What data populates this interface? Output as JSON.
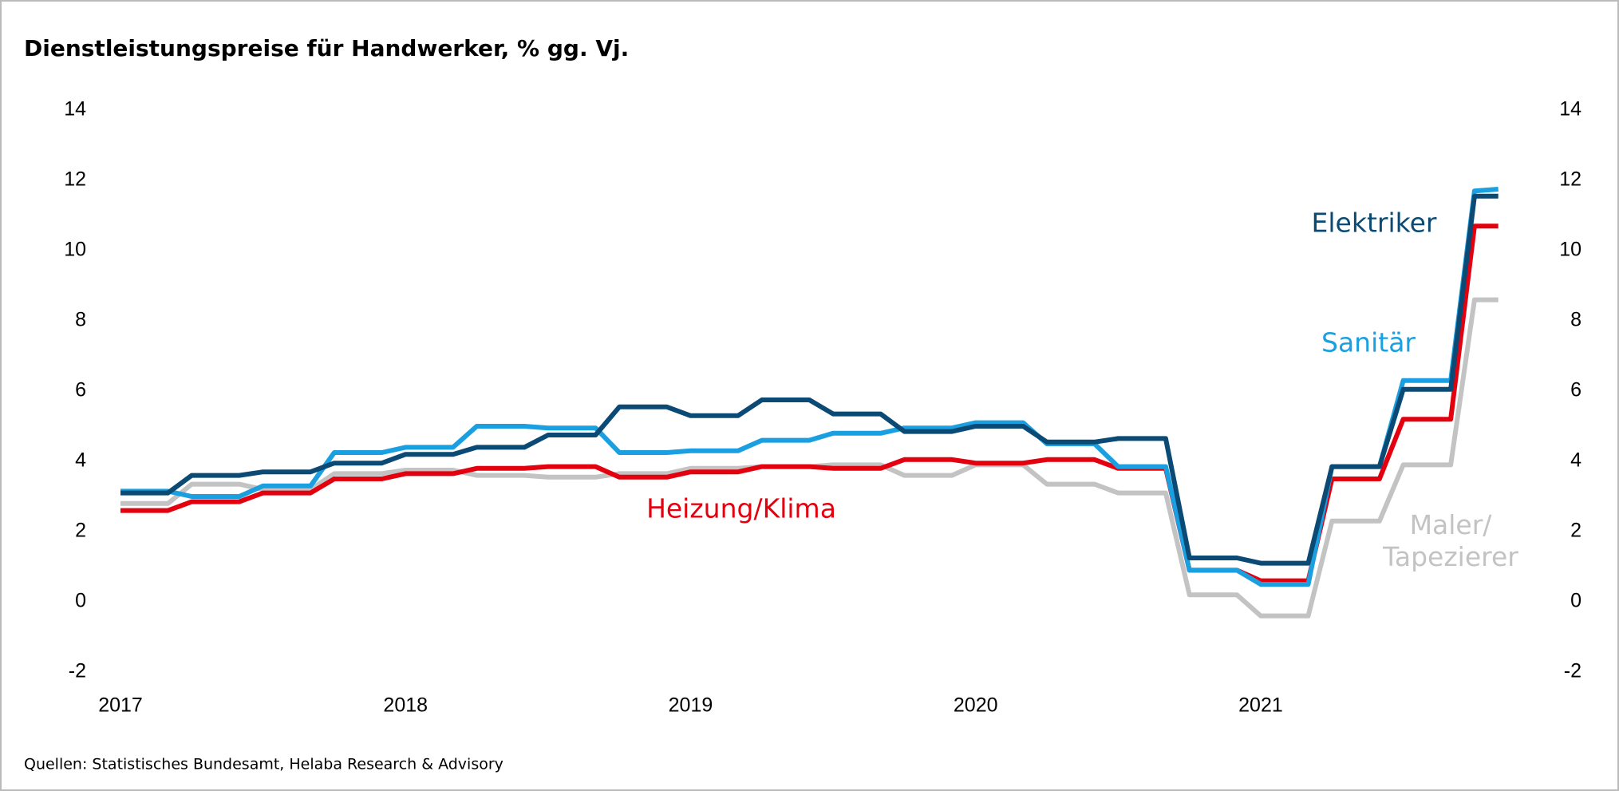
{
  "chart_data": {
    "type": "line",
    "title": "Dienstleistungspreise für Handwerker, % gg. Vj.",
    "source": "Quellen: Statistisches Bundesamt, Helaba Research & Advisory",
    "categories": [
      "2017",
      null,
      null,
      null,
      null,
      null,
      null,
      null,
      null,
      null,
      null,
      null,
      "2018",
      null,
      null,
      null,
      null,
      null,
      null,
      null,
      null,
      null,
      null,
      null,
      "2019",
      null,
      null,
      null,
      null,
      null,
      null,
      null,
      null,
      null,
      null,
      null,
      "2020",
      null,
      null,
      null,
      null,
      null,
      null,
      null,
      null,
      null,
      null,
      null,
      "2021",
      null,
      null,
      null,
      null,
      null,
      null,
      null,
      null,
      null,
      null
    ],
    "ylim": [
      -2,
      14
    ],
    "yticks": [
      -2,
      0,
      2,
      4,
      6,
      8,
      10,
      12,
      14
    ],
    "y2lim": [
      -2,
      14
    ],
    "y2ticks": [
      -2,
      0,
      2,
      4,
      6,
      8,
      10,
      12,
      14
    ],
    "grid": false,
    "series": [
      {
        "name": "Maler/ Tapezierer",
        "color": "#c3c3c3",
        "values": [
          2.8,
          2.8,
          2.8,
          3.35,
          3.35,
          3.35,
          3.2,
          3.2,
          3.2,
          3.65,
          3.65,
          3.65,
          3.75,
          3.75,
          3.75,
          3.6,
          3.6,
          3.6,
          3.55,
          3.55,
          3.55,
          3.65,
          3.65,
          3.65,
          3.8,
          3.8,
          3.8,
          3.85,
          3.85,
          3.85,
          3.9,
          3.9,
          3.9,
          3.6,
          3.6,
          3.6,
          3.9,
          3.9,
          3.9,
          3.35,
          3.35,
          3.35,
          3.1,
          3.1,
          3.1,
          0.2,
          0.2,
          0.2,
          -0.4,
          -0.4,
          -0.4,
          2.3,
          2.3,
          2.3,
          3.9,
          3.9,
          3.9,
          8.6,
          8.6
        ]
      },
      {
        "name": "Heizung/Klima",
        "color": "#e3000f",
        "values": [
          2.6,
          2.6,
          2.6,
          2.85,
          2.85,
          2.85,
          3.1,
          3.1,
          3.1,
          3.5,
          3.5,
          3.5,
          3.65,
          3.65,
          3.65,
          3.8,
          3.8,
          3.8,
          3.85,
          3.85,
          3.85,
          3.55,
          3.55,
          3.55,
          3.7,
          3.7,
          3.7,
          3.85,
          3.85,
          3.85,
          3.8,
          3.8,
          3.8,
          4.05,
          4.05,
          4.05,
          3.95,
          3.95,
          3.95,
          4.05,
          4.05,
          4.05,
          3.8,
          3.8,
          3.8,
          0.9,
          0.9,
          0.9,
          0.6,
          0.6,
          0.6,
          3.5,
          3.5,
          3.5,
          5.2,
          5.2,
          5.2,
          10.7,
          10.7
        ]
      },
      {
        "name": "Sanitär",
        "color": "#1aa0e0",
        "values": [
          3.15,
          3.15,
          3.15,
          3.0,
          3.0,
          3.0,
          3.3,
          3.3,
          3.3,
          4.25,
          4.25,
          4.25,
          4.4,
          4.4,
          4.4,
          5.0,
          5.0,
          5.0,
          4.95,
          4.95,
          4.95,
          4.25,
          4.25,
          4.25,
          4.3,
          4.3,
          4.3,
          4.6,
          4.6,
          4.6,
          4.8,
          4.8,
          4.8,
          4.95,
          4.95,
          4.95,
          5.1,
          5.1,
          5.1,
          4.5,
          4.5,
          4.5,
          3.85,
          3.85,
          3.85,
          0.9,
          0.9,
          0.9,
          0.5,
          0.5,
          0.5,
          3.85,
          3.85,
          3.85,
          6.3,
          6.3,
          6.3,
          11.7,
          11.75
        ]
      },
      {
        "name": "Elektriker",
        "color": "#0a4a74",
        "values": [
          3.1,
          3.1,
          3.1,
          3.6,
          3.6,
          3.6,
          3.7,
          3.7,
          3.7,
          3.95,
          3.95,
          3.95,
          4.2,
          4.2,
          4.2,
          4.4,
          4.4,
          4.4,
          4.75,
          4.75,
          4.75,
          5.55,
          5.55,
          5.55,
          5.3,
          5.3,
          5.3,
          5.75,
          5.75,
          5.75,
          5.35,
          5.35,
          5.35,
          4.85,
          4.85,
          4.85,
          5.0,
          5.0,
          5.0,
          4.55,
          4.55,
          4.55,
          4.65,
          4.65,
          4.65,
          1.25,
          1.25,
          1.25,
          1.1,
          1.1,
          1.1,
          3.85,
          3.85,
          3.85,
          6.05,
          6.05,
          6.05,
          11.55,
          11.55
        ]
      }
    ]
  }
}
